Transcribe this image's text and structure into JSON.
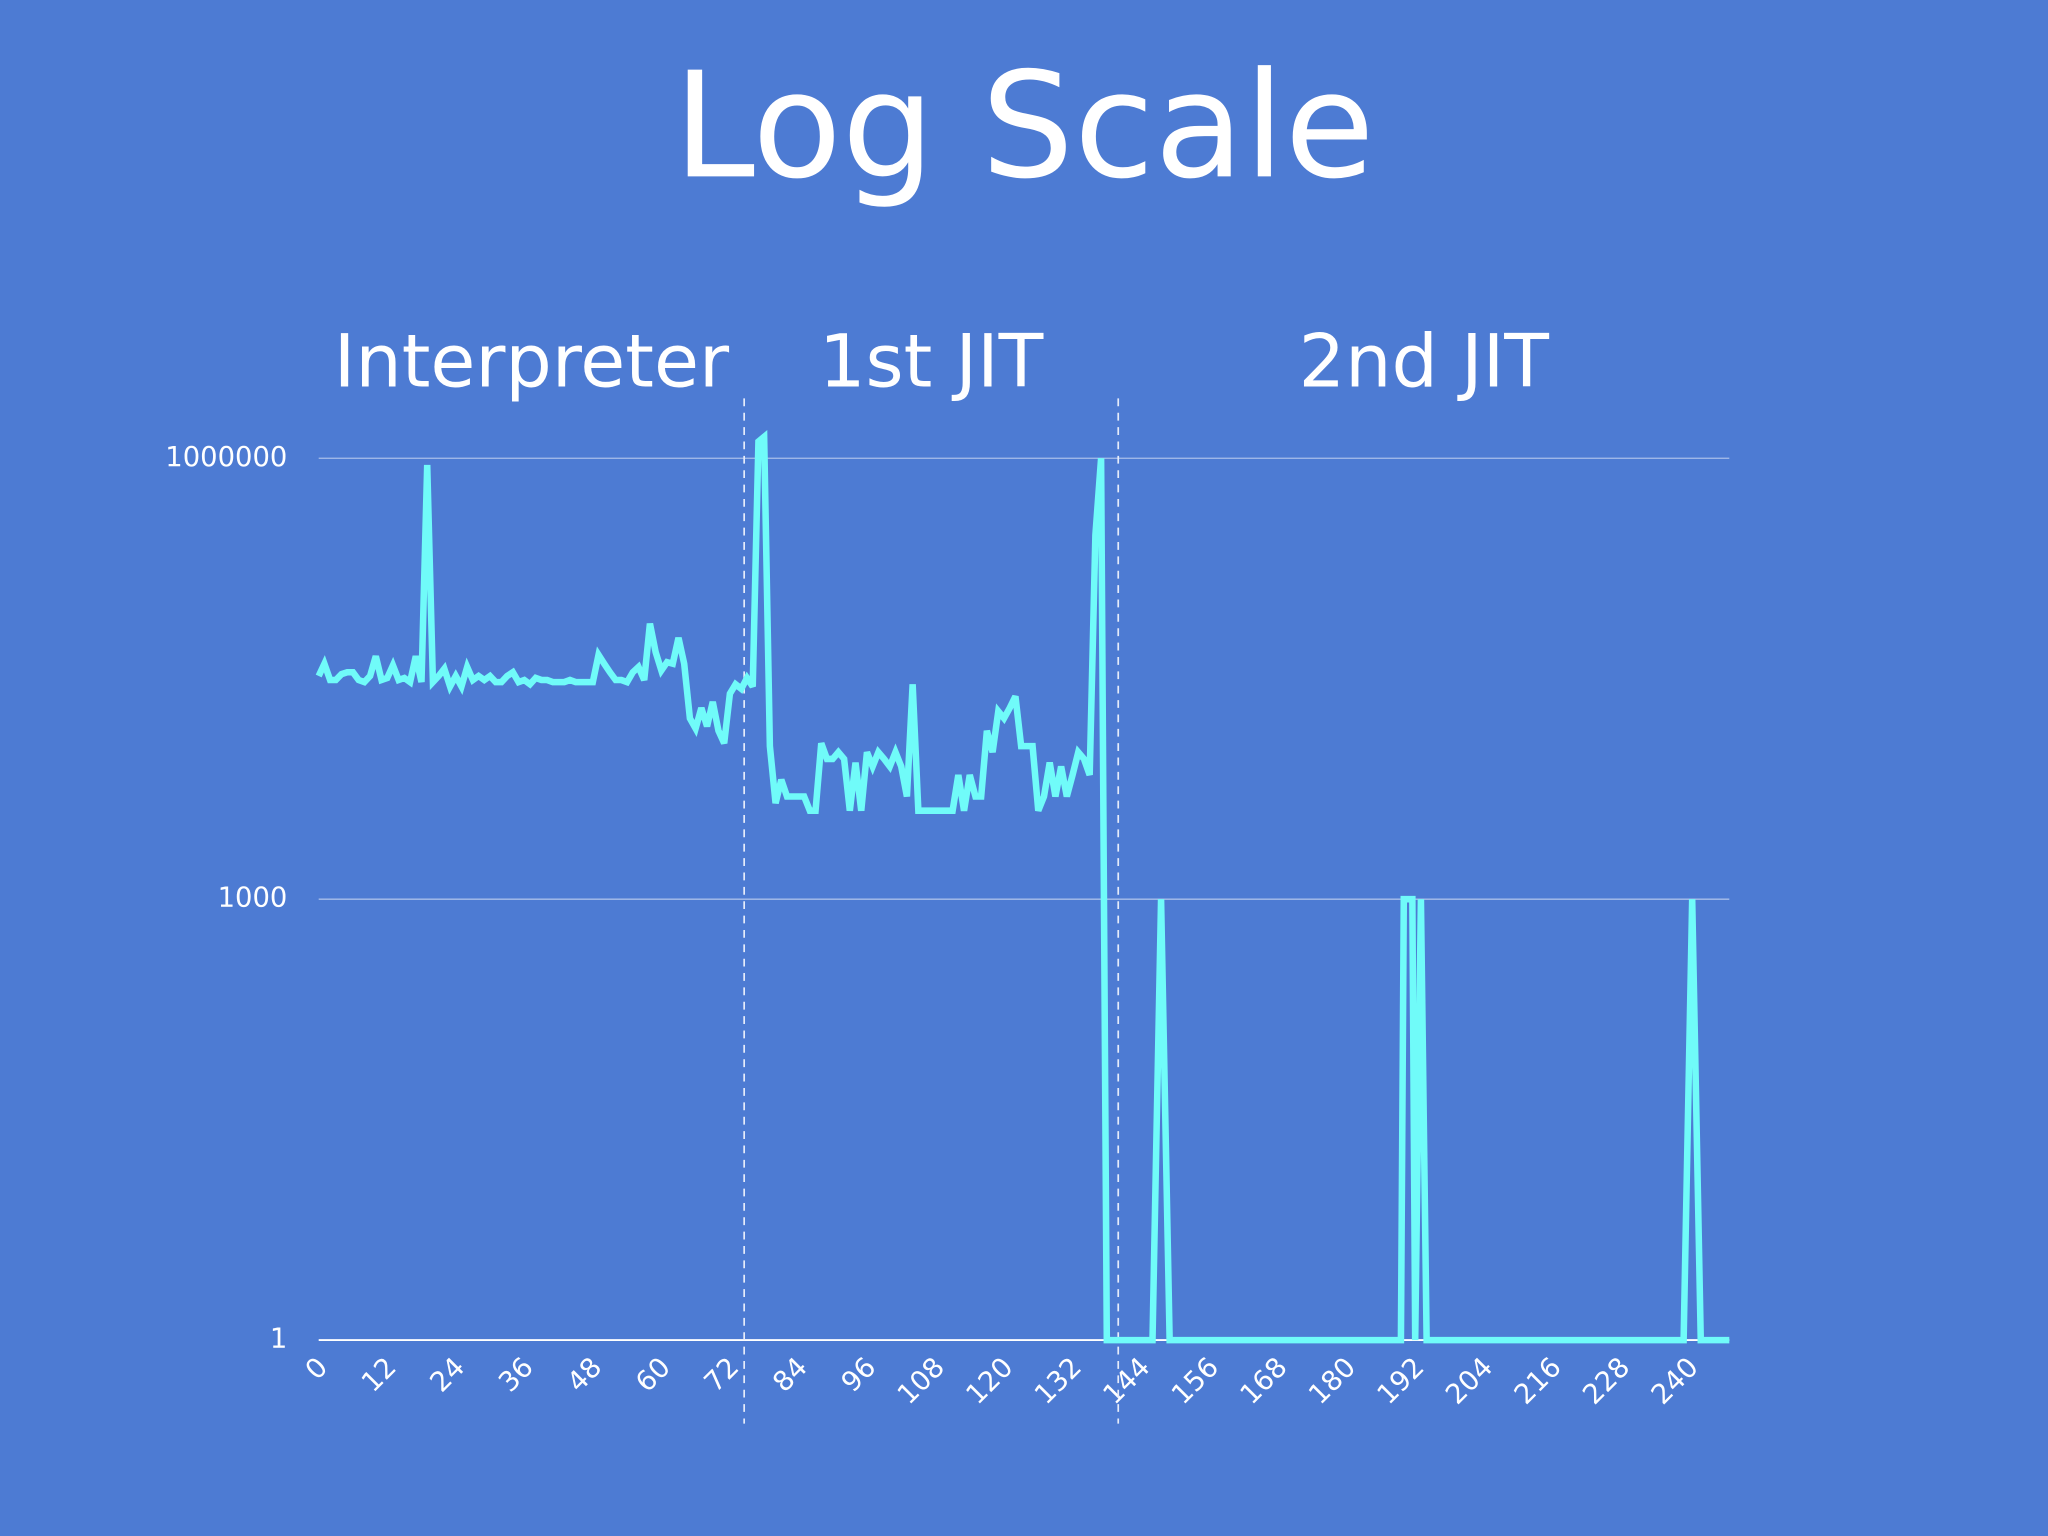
{
  "chart_data": {
    "type": "line",
    "title": "Log Scale",
    "region_labels": [
      "Interpreter",
      "1st JIT",
      "2nd JIT"
    ],
    "dividers": [
      74.5,
      140
    ],
    "log_scale": true,
    "grid": true,
    "color": "#70fbf9",
    "xlim": [
      0,
      247
    ],
    "xticks": [
      0,
      12,
      24,
      36,
      48,
      60,
      72,
      84,
      96,
      108,
      120,
      132,
      144,
      156,
      168,
      180,
      192,
      204,
      216,
      228,
      240
    ],
    "ylim": [
      1,
      2000000
    ],
    "yticks": [
      1,
      1000,
      1000000
    ],
    "x": [
      0,
      1,
      2,
      3,
      4,
      5,
      6,
      7,
      8,
      9,
      10,
      11,
      12,
      13,
      14,
      15,
      16,
      17,
      18,
      19,
      20,
      21,
      22,
      23,
      24,
      25,
      26,
      27,
      28,
      29,
      30,
      31,
      32,
      33,
      34,
      35,
      36,
      37,
      38,
      39,
      40,
      41,
      42,
      43,
      44,
      45,
      46,
      47,
      48,
      49,
      50,
      51,
      52,
      53,
      54,
      55,
      56,
      57,
      58,
      59,
      60,
      61,
      62,
      63,
      64,
      65,
      66,
      67,
      68,
      69,
      70,
      71,
      72,
      73,
      74,
      75,
      76,
      77,
      78,
      79,
      80,
      81,
      82,
      83,
      84,
      85,
      86,
      87,
      88,
      89,
      90,
      91,
      92,
      93,
      94,
      95,
      96,
      97,
      98,
      99,
      100,
      101,
      102,
      103,
      104,
      105,
      106,
      107,
      108,
      109,
      110,
      111,
      112,
      113,
      114,
      115,
      116,
      117,
      118,
      119,
      120,
      121,
      122,
      123,
      124,
      125,
      126,
      127,
      128,
      129,
      130,
      131,
      132,
      133,
      134,
      135,
      136,
      137,
      138,
      146,
      147.5,
      149,
      189.5,
      190,
      191.5,
      192,
      193,
      194,
      239,
      240.5,
      242,
      247
    ],
    "values": [
      33000,
      40000,
      31000,
      31000,
      34000,
      35000,
      35000,
      31000,
      30000,
      33000,
      45000,
      31000,
      32000,
      39000,
      31000,
      32000,
      30000,
      45000,
      30000,
      900000,
      30000,
      33000,
      37000,
      28000,
      33000,
      28000,
      38000,
      31000,
      33000,
      31000,
      33000,
      30000,
      30000,
      33000,
      35000,
      30000,
      31000,
      29000,
      32000,
      31000,
      31000,
      30000,
      30000,
      30000,
      31000,
      30000,
      30000,
      30000,
      30000,
      46000,
      40000,
      35000,
      31000,
      31000,
      30000,
      35000,
      38000,
      31000,
      75000,
      48000,
      36000,
      41000,
      40000,
      60000,
      40000,
      17000,
      14500,
      20000,
      15000,
      22000,
      14000,
      11500,
      25000,
      29000,
      27000,
      32000,
      28000,
      1300000,
      1400000,
      11000,
      4500,
      6500,
      5000,
      5000,
      5000,
      5000,
      4000,
      4000,
      11500,
      9000,
      9000,
      10000,
      9000,
      4000,
      8500,
      4000,
      10000,
      8000,
      10000,
      9000,
      8000,
      10000,
      8000,
      5000,
      29000,
      4000,
      4000,
      4000,
      4000,
      4000,
      4000,
      4000,
      7000,
      4000,
      7000,
      5000,
      5000,
      14000,
      10000,
      19000,
      17000,
      20000,
      24000,
      11000,
      11000,
      11000,
      4000,
      5000,
      8500,
      5000,
      8000,
      5000,
      7000,
      10000,
      9000,
      7000,
      300000,
      1000000,
      1,
      1,
      1000,
      1,
      1,
      1000,
      1000,
      1,
      1000,
      1,
      1,
      1000,
      1,
      1
    ]
  }
}
